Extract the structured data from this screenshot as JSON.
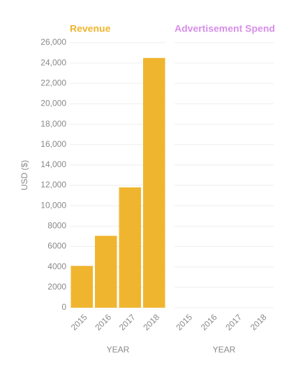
{
  "chart_data": [
    {
      "type": "bar",
      "title": "Revenue",
      "color": "#f0b52e",
      "xlabel": "YEAR",
      "ylabel": "USD ($)",
      "categories": [
        "2015",
        "2016",
        "2017",
        "2018"
      ],
      "values": [
        4100,
        7050,
        11800,
        24500
      ],
      "ylim": [
        0,
        26000
      ],
      "yticks": [
        0,
        2000,
        4000,
        6000,
        8000,
        {
          "value": 10000,
          "label": "10,000"
        },
        {
          "value": 12000,
          "label": "12,000"
        },
        {
          "value": 14000,
          "label": "14,000"
        },
        {
          "value": 16000,
          "label": "16,000"
        },
        {
          "value": 18000,
          "label": "18,000"
        },
        {
          "value": 20000,
          "label": "20,000"
        },
        {
          "value": 22000,
          "label": "22,000"
        },
        {
          "value": 24000,
          "label": "24,000"
        },
        {
          "value": 26000,
          "label": "26,000"
        }
      ],
      "grid": true
    },
    {
      "type": "bar",
      "title": "Advertisement Spend",
      "color": "#d68fe8",
      "xlabel": "YEAR",
      "categories": [
        "2015",
        "2016",
        "2017",
        "2018"
      ],
      "values": [
        null,
        null,
        null,
        null
      ]
    }
  ]
}
